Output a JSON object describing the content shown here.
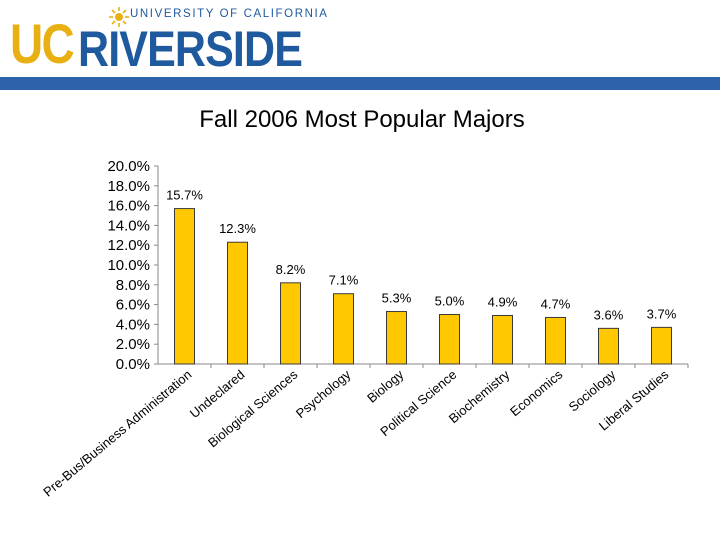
{
  "header": {
    "logo_uc": "UC",
    "logo_riverside": "RIVERSIDE",
    "logo_university": "UNIVERSITY OF CALIFORNIA"
  },
  "chart_data": {
    "type": "bar",
    "title": "Fall 2006 Most Popular Majors",
    "xlabel": "",
    "ylabel": "",
    "ylim": [
      0,
      20
    ],
    "yticks": [
      "0.0%",
      "2.0%",
      "4.0%",
      "6.0%",
      "8.0%",
      "10.0%",
      "12.0%",
      "14.0%",
      "16.0%",
      "18.0%",
      "20.0%"
    ],
    "categories": [
      "Pre-Bus/Business Administration",
      "Undeclared",
      "Biological Sciences",
      "Psychology",
      "Biology",
      "Political Science",
      "Biochemistry",
      "Economics",
      "Sociology",
      "Liberal Studies"
    ],
    "values": [
      15.7,
      12.3,
      8.2,
      7.1,
      5.3,
      5.0,
      4.9,
      4.7,
      3.6,
      3.7
    ],
    "data_labels": [
      "15.7%",
      "12.3%",
      "8.2%",
      "7.1%",
      "5.3%",
      "5.0%",
      "4.9%",
      "4.7%",
      "3.6%",
      "3.7%"
    ],
    "bar_color": "#ffc800",
    "bar_stroke": "#3a3a3a",
    "grid": false,
    "legend": "none"
  }
}
